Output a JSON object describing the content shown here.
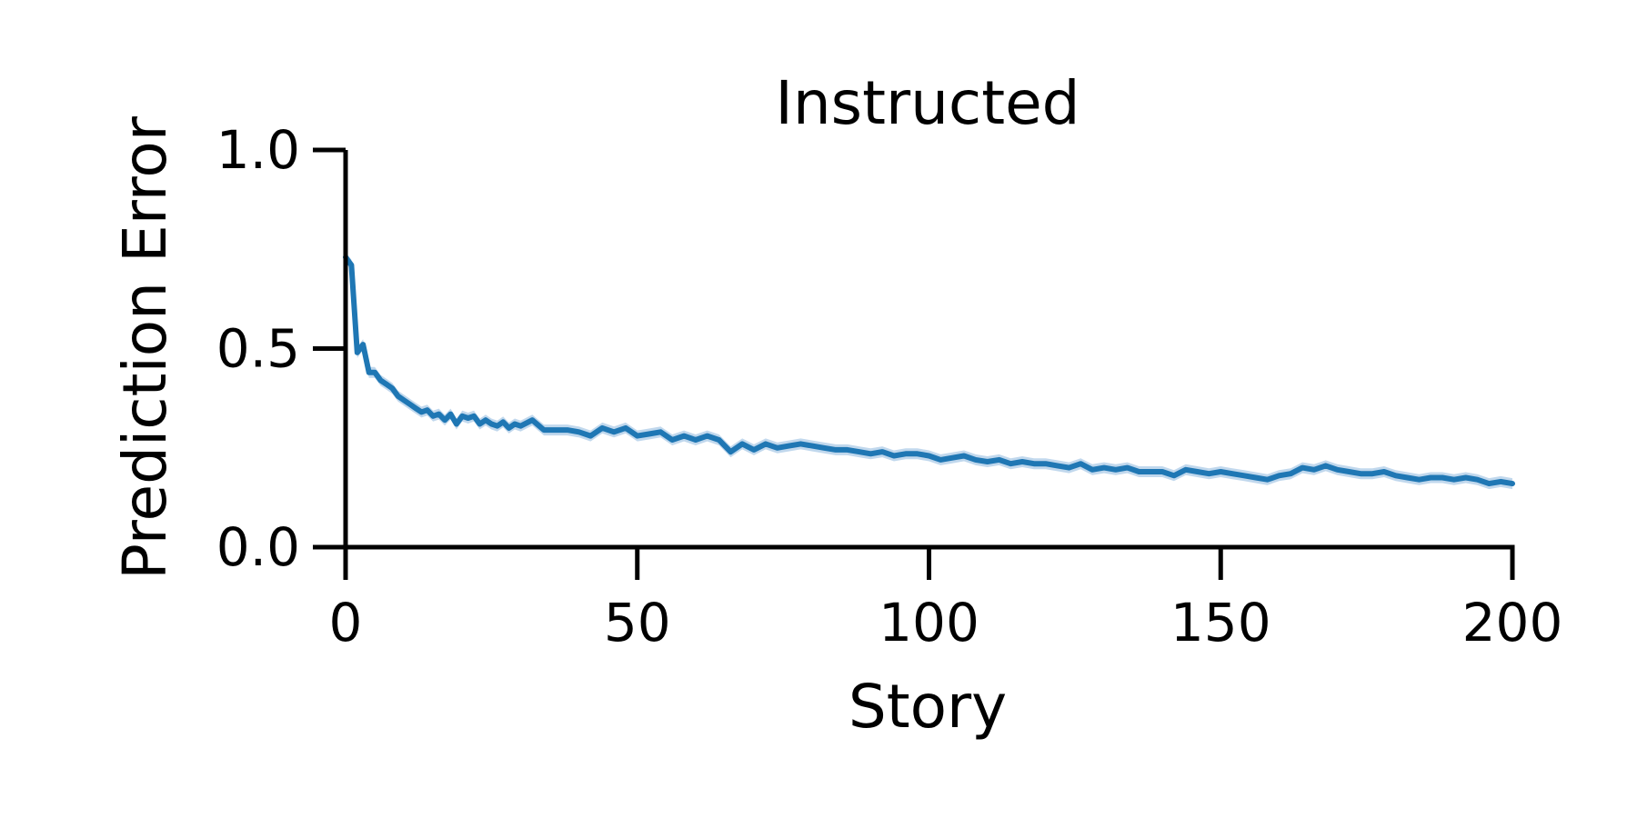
{
  "chart_data": {
    "type": "line",
    "title": "Instructed",
    "xlabel": "Story",
    "ylabel": "Prediction Error",
    "xlim": [
      0,
      200
    ],
    "ylim": [
      0,
      1.0
    ],
    "xticks": [
      0,
      50,
      100,
      150,
      200
    ],
    "xtick_labels": [
      "0",
      "50",
      "100",
      "150",
      "200"
    ],
    "yticks": [
      0,
      0.5,
      1.0
    ],
    "ytick_labels": [
      "0.0",
      "0.5",
      "1.0"
    ],
    "grid": false,
    "legend": "none",
    "colors": {
      "line": "#1f77b4",
      "band": "#a6c8e6",
      "axis": "#000000"
    },
    "series": [
      {
        "x": [
          0,
          1,
          2,
          3,
          4,
          5,
          6,
          7,
          8,
          9,
          10,
          11,
          12,
          13,
          14,
          15,
          16,
          17,
          18,
          19,
          20,
          21,
          22,
          23,
          24,
          25,
          26,
          27,
          28,
          29,
          30,
          32,
          34,
          36,
          38,
          40,
          42,
          44,
          46,
          48,
          50,
          52,
          54,
          56,
          58,
          60,
          62,
          64,
          66,
          68,
          70,
          72,
          74,
          76,
          78,
          80,
          82,
          84,
          86,
          88,
          90,
          92,
          94,
          96,
          98,
          100,
          102,
          104,
          106,
          108,
          110,
          112,
          114,
          116,
          118,
          120,
          122,
          124,
          126,
          128,
          130,
          132,
          134,
          136,
          138,
          140,
          142,
          144,
          146,
          148,
          150,
          152,
          154,
          156,
          158,
          160,
          162,
          164,
          166,
          168,
          170,
          172,
          174,
          176,
          178,
          180,
          182,
          184,
          186,
          188,
          190,
          192,
          194,
          196,
          198,
          200
        ],
        "values": [
          0.73,
          0.71,
          0.49,
          0.51,
          0.44,
          0.44,
          0.42,
          0.41,
          0.4,
          0.38,
          0.37,
          0.36,
          0.35,
          0.34,
          0.345,
          0.33,
          0.335,
          0.32,
          0.335,
          0.31,
          0.33,
          0.325,
          0.33,
          0.31,
          0.32,
          0.31,
          0.305,
          0.315,
          0.3,
          0.31,
          0.305,
          0.32,
          0.295,
          0.295,
          0.295,
          0.29,
          0.28,
          0.3,
          0.29,
          0.3,
          0.28,
          0.285,
          0.29,
          0.27,
          0.28,
          0.27,
          0.28,
          0.27,
          0.24,
          0.26,
          0.245,
          0.26,
          0.25,
          0.255,
          0.26,
          0.255,
          0.25,
          0.245,
          0.245,
          0.24,
          0.235,
          0.24,
          0.23,
          0.235,
          0.235,
          0.23,
          0.22,
          0.225,
          0.23,
          0.22,
          0.215,
          0.22,
          0.21,
          0.215,
          0.21,
          0.21,
          0.205,
          0.2,
          0.21,
          0.195,
          0.2,
          0.195,
          0.2,
          0.19,
          0.19,
          0.19,
          0.18,
          0.195,
          0.19,
          0.185,
          0.19,
          0.185,
          0.18,
          0.175,
          0.17,
          0.18,
          0.185,
          0.2,
          0.195,
          0.205,
          0.195,
          0.19,
          0.185,
          0.185,
          0.19,
          0.18,
          0.175,
          0.17,
          0.175,
          0.175,
          0.17,
          0.175,
          0.17,
          0.16,
          0.165,
          0.16
        ]
      }
    ]
  }
}
